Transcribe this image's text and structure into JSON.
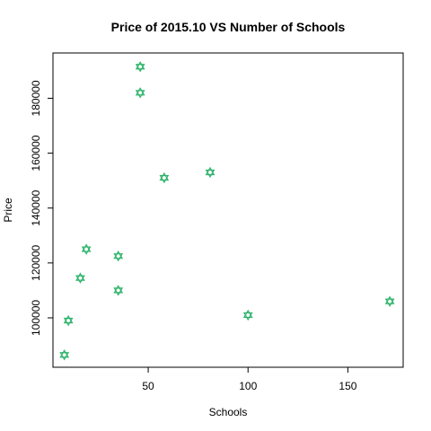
{
  "chart_data": {
    "type": "scatter",
    "title": "Price of 2015.10 VS Number of Schools",
    "xlabel": "Schools",
    "ylabel": "Price",
    "xlim": [
      2.3,
      177.7
    ],
    "ylim": [
      82000,
      196500
    ],
    "x_ticks": [
      50,
      100,
      150
    ],
    "y_ticks": [
      100000,
      120000,
      140000,
      160000,
      180000
    ],
    "y_tick_labels": [
      "100000",
      "120000",
      "140000",
      "160000",
      "180000"
    ],
    "marker_color": "#2EB36B",
    "marker": "hexagram",
    "grid": false,
    "points": [
      {
        "x": 8,
        "y": 86500
      },
      {
        "x": 10,
        "y": 99000
      },
      {
        "x": 16,
        "y": 114500
      },
      {
        "x": 19,
        "y": 125000
      },
      {
        "x": 35,
        "y": 110000
      },
      {
        "x": 35,
        "y": 122500
      },
      {
        "x": 46,
        "y": 182000
      },
      {
        "x": 46,
        "y": 191500
      },
      {
        "x": 58,
        "y": 151000
      },
      {
        "x": 81,
        "y": 153000
      },
      {
        "x": 100,
        "y": 101000
      },
      {
        "x": 171,
        "y": 106000
      }
    ]
  }
}
